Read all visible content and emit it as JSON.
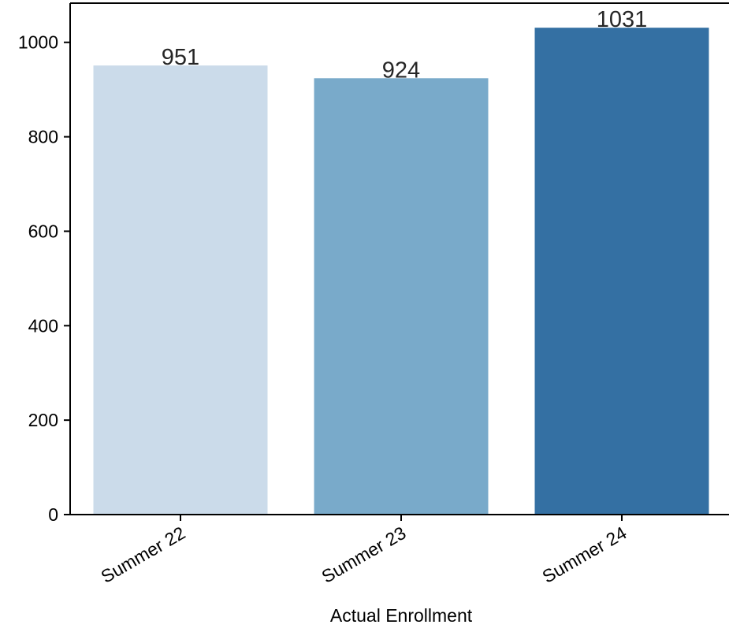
{
  "chart_data": {
    "type": "bar",
    "categories": [
      "Summer 22",
      "Summer 23",
      "Summer 24"
    ],
    "values": [
      951,
      924,
      1031
    ],
    "data_labels": [
      "951",
      "924",
      "1031"
    ],
    "xlabel": "Actual Enrollment",
    "ylabel": "",
    "ylim": [
      0,
      1083
    ],
    "yticks": [
      0,
      200,
      400,
      600,
      800,
      1000
    ],
    "ytick_labels": [
      "0",
      "200",
      "400",
      "600",
      "800",
      "1000"
    ],
    "bar_colors": [
      "#cbdbea",
      "#79aaca",
      "#3470a3"
    ],
    "grid": false,
    "legend": "none"
  }
}
